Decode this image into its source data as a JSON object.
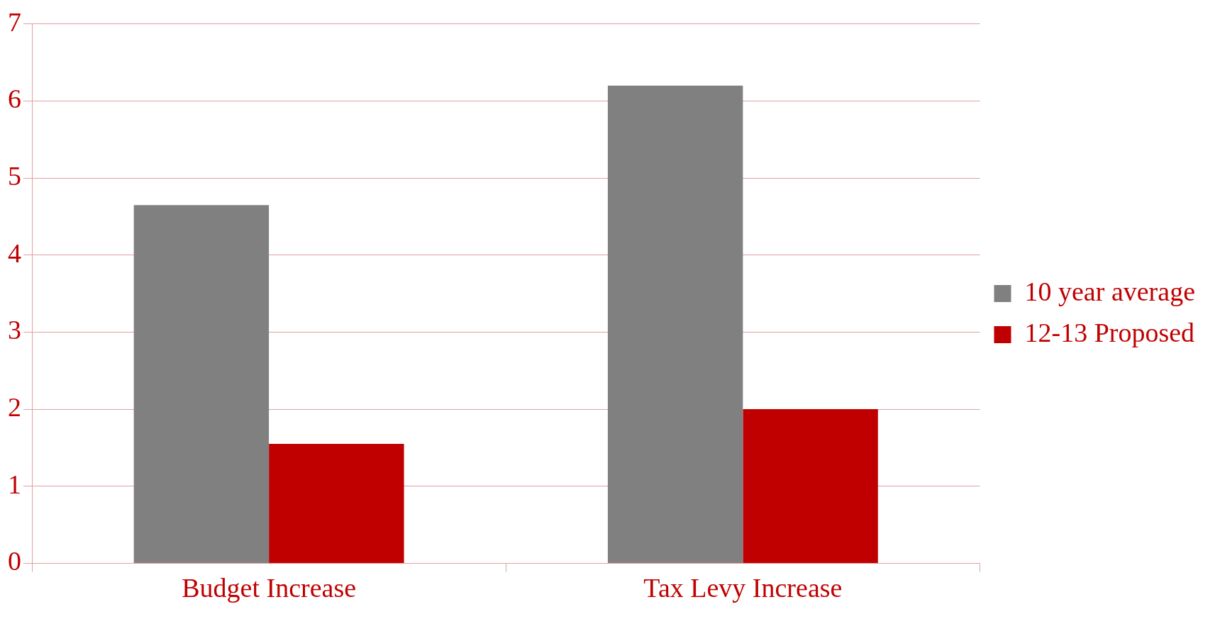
{
  "chart_data": {
    "type": "bar",
    "categories": [
      "Budget Increase",
      "Tax Levy Increase"
    ],
    "series": [
      {
        "name": "10 year average",
        "color": "#808080",
        "values": [
          4.65,
          6.2
        ]
      },
      {
        "name": "12-13 Proposed",
        "color": "#c00000",
        "values": [
          1.55,
          2.0
        ]
      }
    ],
    "ylim": [
      0,
      7
    ],
    "yticks": [
      0,
      1,
      2,
      3,
      4,
      5,
      6,
      7
    ],
    "grid": "y",
    "legend": "right"
  }
}
